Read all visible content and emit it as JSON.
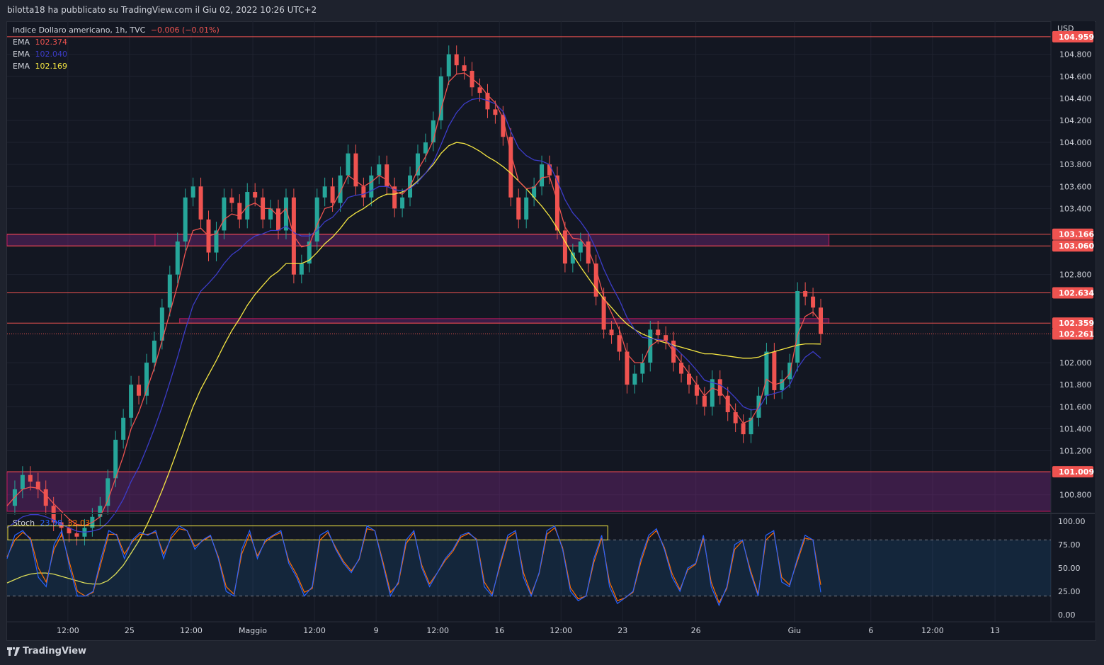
{
  "header": {
    "published": "bilotta18 ha pubblicato su TradingView.com il Giu 02, 2022 10:26 UTC+2"
  },
  "legend": {
    "symbol": "Indice Dollaro americano, 1h, TVC",
    "change": "−0.006 (−0.01%)",
    "ema_label": "EMA",
    "emas": [
      {
        "label": "EMA",
        "value": "102.374",
        "color": "#ef5350"
      },
      {
        "label": "EMA",
        "value": "102.040",
        "color": "#3c3cc8"
      },
      {
        "label": "EMA",
        "value": "102.169",
        "color": "#f5e642"
      }
    ]
  },
  "stoch_legend": {
    "label": "Stoch",
    "k": "23.98",
    "d": "32.03",
    "k_color": "#2962ff",
    "d_color": "#ff6d00"
  },
  "footer": {
    "brand": "TradingView"
  },
  "chart_data": {
    "type": "candlestick",
    "title": "Indice Dollaro americano, 1h, TVC",
    "currency": "USD",
    "price_axis": {
      "ylim": [
        100.65,
        105.1
      ],
      "ticks": [
        "104.800",
        "104.600",
        "104.400",
        "104.200",
        "104.000",
        "103.800",
        "103.600",
        "103.400",
        "102.800",
        "102.000",
        "101.800",
        "101.600",
        "101.400",
        "101.200",
        "100.800"
      ]
    },
    "price_labels": [
      {
        "value": 104.959,
        "text": "104.959",
        "kind": "level"
      },
      {
        "value": 103.166,
        "text": "103.166",
        "kind": "level"
      },
      {
        "value": 103.06,
        "text": "103.060",
        "kind": "level"
      },
      {
        "value": 102.634,
        "text": "102.634",
        "kind": "level"
      },
      {
        "value": 102.359,
        "text": "102.359",
        "kind": "level"
      },
      {
        "value": 102.261,
        "text": "102.261",
        "kind": "last"
      },
      {
        "value": 101.009,
        "text": "101.009",
        "kind": "level"
      }
    ],
    "zones": [
      {
        "top": 103.166,
        "bottom": 103.06,
        "from_t": 0,
        "to_t": 18
      },
      {
        "top": 103.166,
        "bottom": 103.06,
        "from_t": 18,
        "to_t": 100
      },
      {
        "top": 102.4,
        "bottom": 102.359,
        "from_t": 21,
        "to_t": 100,
        "extend_to_t": 113
      },
      {
        "top": 101.009,
        "bottom": 100.65,
        "from_t": 0,
        "to_t": 127
      }
    ],
    "x_axis": {
      "labels": [
        {
          "t": 7.4,
          "text": "12:00"
        },
        {
          "t": 14.9,
          "text": "25"
        },
        {
          "t": 22.4,
          "text": "12:00"
        },
        {
          "t": 29.9,
          "text": "Maggio"
        },
        {
          "t": 37.4,
          "text": "12:00"
        },
        {
          "t": 44.9,
          "text": "9"
        },
        {
          "t": 52.4,
          "text": "12:00"
        },
        {
          "t": 59.9,
          "text": "16"
        },
        {
          "t": 67.4,
          "text": "12:00"
        },
        {
          "t": 74.9,
          "text": "23"
        },
        {
          "t": 83.8,
          "text": "26"
        },
        {
          "t": 95.8,
          "text": "Giu"
        },
        {
          "t": 105.1,
          "text": "6"
        },
        {
          "t": 112.6,
          "text": "12:00"
        },
        {
          "t": 120.2,
          "text": "13"
        }
      ]
    },
    "close_series": [
      100.7,
      100.85,
      100.98,
      100.92,
      100.85,
      100.7,
      100.55,
      100.5,
      100.45,
      100.42,
      100.5,
      100.6,
      100.7,
      100.95,
      101.3,
      101.5,
      101.8,
      101.7,
      102.0,
      102.2,
      102.5,
      102.8,
      103.1,
      103.5,
      103.6,
      103.3,
      103.0,
      103.2,
      103.5,
      103.45,
      103.3,
      103.55,
      103.5,
      103.3,
      103.4,
      103.2,
      103.5,
      102.8,
      102.9,
      103.1,
      103.5,
      103.6,
      103.45,
      103.7,
      103.9,
      103.6,
      103.5,
      103.7,
      103.8,
      103.6,
      103.4,
      103.5,
      103.7,
      103.9,
      104.0,
      104.2,
      104.6,
      104.8,
      104.7,
      104.65,
      104.5,
      104.45,
      104.3,
      104.25,
      104.05,
      103.5,
      103.3,
      103.5,
      103.6,
      103.8,
      103.7,
      103.2,
      102.9,
      103.0,
      103.1,
      102.9,
      102.6,
      102.3,
      102.25,
      102.1,
      101.8,
      101.9,
      102.0,
      102.3,
      102.25,
      102.2,
      102.0,
      101.9,
      101.8,
      101.7,
      101.6,
      101.85,
      101.7,
      101.55,
      101.45,
      101.35,
      101.5,
      101.7,
      102.1,
      101.75,
      101.85,
      102.0,
      102.65,
      102.6,
      102.5,
      102.26
    ],
    "ema_fast": [
      100.7,
      100.78,
      100.85,
      100.87,
      100.86,
      100.8,
      100.72,
      100.65,
      100.58,
      100.53,
      100.52,
      100.55,
      100.6,
      100.75,
      100.95,
      101.15,
      101.4,
      101.55,
      101.75,
      101.95,
      102.2,
      102.45,
      102.7,
      103.0,
      103.2,
      103.22,
      103.15,
      103.17,
      103.3,
      103.35,
      103.33,
      103.42,
      103.45,
      103.4,
      103.4,
      103.33,
      103.4,
      103.15,
      103.05,
      103.07,
      103.25,
      103.4,
      103.42,
      103.55,
      103.7,
      103.65,
      103.6,
      103.64,
      103.7,
      103.66,
      103.55,
      103.53,
      103.6,
      103.75,
      103.87,
      104.02,
      104.3,
      104.55,
      104.62,
      104.63,
      104.58,
      104.52,
      104.43,
      104.36,
      104.22,
      103.9,
      103.65,
      103.58,
      103.59,
      103.68,
      103.69,
      103.47,
      103.23,
      103.13,
      103.12,
      103.03,
      102.85,
      102.6,
      102.45,
      102.3,
      102.08,
      102.0,
      102.0,
      102.15,
      102.2,
      102.2,
      102.1,
      102.0,
      101.9,
      101.8,
      101.7,
      101.77,
      101.74,
      101.65,
      101.55,
      101.45,
      101.48,
      101.6,
      101.85,
      101.8,
      101.82,
      101.9,
      102.25,
      102.42,
      102.46,
      102.37
    ],
    "ema_mid": [
      100.5,
      100.55,
      100.6,
      100.62,
      100.62,
      100.6,
      100.57,
      100.53,
      100.5,
      100.47,
      100.46,
      100.47,
      100.49,
      100.55,
      100.64,
      100.76,
      100.92,
      101.05,
      101.22,
      101.4,
      101.6,
      101.82,
      102.05,
      102.3,
      102.52,
      102.65,
      102.72,
      102.8,
      102.9,
      102.98,
      103.03,
      103.1,
      103.15,
      103.17,
      103.2,
      103.2,
      103.24,
      103.18,
      103.15,
      103.15,
      103.2,
      103.28,
      103.32,
      103.4,
      103.5,
      103.52,
      103.53,
      103.56,
      103.6,
      103.6,
      103.57,
      103.56,
      103.58,
      103.64,
      103.72,
      103.82,
      103.98,
      104.15,
      104.27,
      104.35,
      104.39,
      104.4,
      104.38,
      104.35,
      104.28,
      104.1,
      103.95,
      103.88,
      103.84,
      103.83,
      103.8,
      103.65,
      103.48,
      103.36,
      103.28,
      103.18,
      103.03,
      102.85,
      102.7,
      102.57,
      102.41,
      102.3,
      102.23,
      102.22,
      102.21,
      102.2,
      102.15,
      102.08,
      102.01,
      101.93,
      101.84,
      101.82,
      101.8,
      101.75,
      101.68,
      101.6,
      101.57,
      101.58,
      101.7,
      101.72,
      101.74,
      101.8,
      101.95,
      102.05,
      102.1,
      102.04
    ],
    "ema_slow": [
      100.0,
      100.03,
      100.06,
      100.08,
      100.09,
      100.09,
      100.08,
      100.06,
      100.04,
      100.02,
      100.0,
      99.99,
      99.99,
      100.02,
      100.08,
      100.16,
      100.27,
      100.38,
      100.52,
      100.67,
      100.84,
      101.02,
      101.21,
      101.41,
      101.6,
      101.76,
      101.89,
      102.02,
      102.16,
      102.29,
      102.4,
      102.52,
      102.62,
      102.7,
      102.78,
      102.83,
      102.9,
      102.9,
      102.9,
      102.93,
      103.0,
      103.08,
      103.14,
      103.22,
      103.31,
      103.36,
      103.4,
      103.45,
      103.5,
      103.53,
      103.53,
      103.55,
      103.59,
      103.65,
      103.72,
      103.8,
      103.9,
      103.97,
      104.0,
      103.99,
      103.96,
      103.92,
      103.87,
      103.83,
      103.78,
      103.72,
      103.65,
      103.58,
      103.5,
      103.42,
      103.33,
      103.22,
      103.1,
      102.98,
      102.87,
      102.77,
      102.67,
      102.58,
      102.5,
      102.42,
      102.35,
      102.3,
      102.26,
      102.23,
      102.2,
      102.18,
      102.16,
      102.14,
      102.12,
      102.1,
      102.08,
      102.08,
      102.07,
      102.06,
      102.05,
      102.04,
      102.04,
      102.05,
      102.08,
      102.1,
      102.12,
      102.14,
      102.16,
      102.17,
      102.17,
      102.169
    ],
    "stoch": {
      "label": "Stoch",
      "k": 23.98,
      "d": 32.03,
      "ylim": [
        0,
        100
      ],
      "ticks": [
        "100.00",
        "75.00",
        "50.00",
        "25.00",
        "0.00"
      ],
      "band": [
        20,
        80
      ],
      "k_series": [
        60,
        85,
        90,
        80,
        40,
        30,
        75,
        90,
        50,
        20,
        20,
        25,
        60,
        90,
        85,
        60,
        80,
        88,
        85,
        90,
        60,
        85,
        95,
        90,
        70,
        80,
        85,
        60,
        25,
        20,
        70,
        90,
        60,
        80,
        85,
        90,
        55,
        40,
        20,
        30,
        85,
        90,
        70,
        55,
        45,
        60,
        95,
        90,
        55,
        20,
        35,
        80,
        90,
        50,
        30,
        45,
        60,
        70,
        85,
        88,
        80,
        30,
        20,
        55,
        85,
        90,
        40,
        20,
        45,
        90,
        95,
        70,
        25,
        15,
        20,
        60,
        85,
        30,
        12,
        18,
        25,
        60,
        85,
        92,
        70,
        40,
        25,
        50,
        55,
        85,
        30,
        10,
        30,
        75,
        80,
        45,
        20,
        85,
        90,
        35,
        30,
        60,
        85,
        80,
        24
      ],
      "d_series": [
        62,
        80,
        88,
        82,
        50,
        35,
        70,
        86,
        55,
        25,
        20,
        24,
        55,
        86,
        86,
        65,
        78,
        86,
        86,
        88,
        65,
        82,
        92,
        90,
        73,
        79,
        84,
        62,
        30,
        22,
        65,
        86,
        63,
        78,
        84,
        88,
        58,
        43,
        24,
        28,
        80,
        88,
        72,
        57,
        47,
        59,
        92,
        90,
        58,
        24,
        33,
        76,
        88,
        53,
        33,
        45,
        58,
        68,
        83,
        87,
        81,
        35,
        22,
        52,
        82,
        88,
        45,
        22,
        44,
        86,
        93,
        72,
        29,
        17,
        20,
        56,
        82,
        35,
        15,
        18,
        24,
        56,
        82,
        90,
        72,
        44,
        27,
        48,
        54,
        82,
        35,
        13,
        28,
        70,
        79,
        48,
        22,
        80,
        88,
        40,
        32,
        57,
        82,
        80,
        32
      ]
    },
    "stoch_rect": {
      "top": 95,
      "bottom": 80,
      "from_t": 0,
      "to_t": 73
    }
  }
}
